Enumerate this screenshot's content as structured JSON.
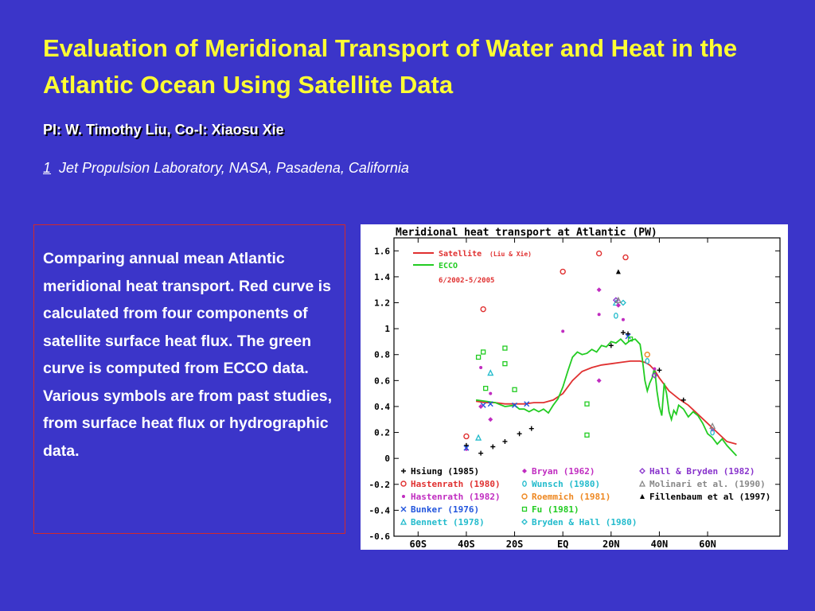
{
  "slide": {
    "title": "Evaluation of Meridional Transport of Water and Heat in the Atlantic Ocean Using Satellite Data",
    "pi": "PI: W. Timothy Liu, Co-I: Xiaosu Xie",
    "affiliation_number": "1",
    "affiliation": "Jet Propulsion Laboratory, NASA, Pasadena, California",
    "description": "Comparing annual mean Atlantic meridional heat transport. Red curve is calculated from four components of satellite surface heat flux. The green curve is computed from ECCO data. Various symbols are from past studies, from surface heat flux or hydrographic data."
  },
  "chart_data": {
    "type": "line",
    "title": "Meridional heat transport at Atlantic (PW)",
    "xlabel": "",
    "ylabel": "",
    "xlim": [
      -70,
      90
    ],
    "ylim": [
      -0.6,
      1.7
    ],
    "x_ticks": [
      -60,
      -40,
      -20,
      0,
      20,
      40,
      60
    ],
    "x_tick_labels": [
      "60S",
      "40S",
      "20S",
      "EQ",
      "20N",
      "40N",
      "60N"
    ],
    "y_ticks": [
      -0.6,
      -0.4,
      -0.2,
      0,
      0.2,
      0.4,
      0.6,
      0.8,
      1,
      1.2,
      1.4,
      1.6
    ],
    "y_tick_labels": [
      "-0.6",
      "-0.4",
      "-0.2",
      "0",
      "0.2",
      "0.4",
      "0.6",
      "0.8",
      "1",
      "1.2",
      "1.4",
      "1.6"
    ],
    "legend_top": {
      "position": "top-left",
      "period": "6/2002-5/2005",
      "items": [
        {
          "label": "Satellite",
          "note": "(Liu & Xie)",
          "color": "#e03030"
        },
        {
          "label": "ECCO",
          "color": "#22cc22"
        }
      ]
    },
    "series": [
      {
        "name": "Satellite",
        "color": "#e03030",
        "x": [
          -36,
          -32,
          -28,
          -24,
          -20,
          -16,
          -12,
          -8,
          -4,
          0,
          4,
          8,
          12,
          16,
          20,
          24,
          28,
          32,
          34,
          36,
          38,
          40,
          44,
          48,
          52,
          56,
          60,
          64,
          68,
          72
        ],
        "y": [
          0.44,
          0.43,
          0.43,
          0.42,
          0.42,
          0.42,
          0.43,
          0.43,
          0.45,
          0.5,
          0.6,
          0.67,
          0.7,
          0.72,
          0.73,
          0.74,
          0.75,
          0.75,
          0.74,
          0.72,
          0.68,
          0.62,
          0.52,
          0.46,
          0.41,
          0.34,
          0.27,
          0.2,
          0.13,
          0.11
        ]
      },
      {
        "name": "ECCO",
        "color": "#22cc22",
        "x": [
          -36,
          -32,
          -28,
          -24,
          -20,
          -18,
          -16,
          -14,
          -12,
          -10,
          -8,
          -6,
          -4,
          -2,
          0,
          2,
          4,
          6,
          8,
          10,
          12,
          14,
          16,
          18,
          20,
          22,
          24,
          26,
          28,
          30,
          32,
          33,
          34,
          35,
          36,
          37,
          38,
          39,
          40,
          41,
          42,
          43,
          44,
          45,
          46,
          47,
          48,
          50,
          52,
          54,
          56,
          58,
          60,
          62,
          64,
          66,
          68,
          72
        ],
        "y": [
          0.45,
          0.44,
          0.43,
          0.4,
          0.41,
          0.38,
          0.38,
          0.36,
          0.38,
          0.36,
          0.38,
          0.35,
          0.41,
          0.46,
          0.55,
          0.67,
          0.78,
          0.82,
          0.8,
          0.81,
          0.84,
          0.82,
          0.87,
          0.86,
          0.9,
          0.89,
          0.92,
          0.88,
          0.91,
          0.92,
          0.88,
          0.76,
          0.6,
          0.52,
          0.58,
          0.62,
          0.7,
          0.52,
          0.4,
          0.33,
          0.58,
          0.5,
          0.36,
          0.3,
          0.37,
          0.34,
          0.41,
          0.38,
          0.32,
          0.36,
          0.33,
          0.27,
          0.19,
          0.16,
          0.11,
          0.15,
          0.1,
          0.02
        ]
      }
    ],
    "studies": [
      {
        "label": "Hsiung (1985)",
        "symbol": "+",
        "color": "#000000",
        "points": [
          [
            -40,
            0.1
          ],
          [
            -34,
            0.04
          ],
          [
            -29,
            0.09
          ],
          [
            -24,
            0.13
          ],
          [
            -18,
            0.19
          ],
          [
            -13,
            0.23
          ],
          [
            20,
            0.87
          ],
          [
            25,
            0.97
          ],
          [
            27,
            0.96
          ],
          [
            40,
            0.68
          ],
          [
            50,
            0.45
          ]
        ]
      },
      {
        "label": "Hastenrath (1980)",
        "symbol": "o",
        "color": "#e03030",
        "points": [
          [
            -40,
            0.17
          ],
          [
            -33,
            1.15
          ],
          [
            0,
            1.44
          ],
          [
            15,
            1.58
          ],
          [
            26,
            1.55
          ]
        ]
      },
      {
        "label": "Hastenrath (1982)",
        "symbol": "•",
        "color": "#c02cc0",
        "points": [
          [
            -40,
            0.07
          ],
          [
            -34,
            0.7
          ],
          [
            -30,
            0.5
          ],
          [
            0,
            0.98
          ],
          [
            15,
            1.11
          ],
          [
            25,
            1.07
          ],
          [
            38,
            0.69
          ],
          [
            62,
            0.22
          ]
        ]
      },
      {
        "label": "Bunker (1976)",
        "symbol": "×",
        "color": "#2255dd",
        "points": [
          [
            -40,
            0.08
          ],
          [
            -33,
            0.41
          ],
          [
            -30,
            0.42
          ],
          [
            -20,
            0.41
          ],
          [
            -15,
            0.42
          ],
          [
            27,
            0.94
          ]
        ]
      },
      {
        "label": "Bennett (1978)",
        "symbol": "△",
        "color": "#22bbcc",
        "points": [
          [
            -35,
            0.16
          ],
          [
            -30,
            0.66
          ],
          [
            22,
            1.2
          ]
        ]
      },
      {
        "label": "Bryan (1962)",
        "symbol": "◆",
        "color": "#c02cc0",
        "points": [
          [
            -34,
            0.4
          ],
          [
            -30,
            0.3
          ],
          [
            15,
            1.3
          ],
          [
            15,
            0.6
          ],
          [
            23,
            1.18
          ]
        ]
      },
      {
        "label": "Wunsch (1980)",
        "symbol": "0",
        "color": "#22bbcc",
        "points": [
          [
            22,
            1.1
          ],
          [
            35,
            0.75
          ],
          [
            62,
            0.2
          ]
        ]
      },
      {
        "label": "Roemmich (1981)",
        "symbol": "o",
        "color": "#ee8822",
        "points": [
          [
            35,
            0.8
          ]
        ]
      },
      {
        "label": "Fu (1981)",
        "symbol": "□",
        "color": "#22cc22",
        "points": [
          [
            -35,
            0.78
          ],
          [
            -33,
            0.82
          ],
          [
            -32,
            0.54
          ],
          [
            -24,
            0.85
          ],
          [
            -24,
            0.73
          ],
          [
            -20,
            0.53
          ],
          [
            10,
            0.42
          ],
          [
            10,
            0.18
          ],
          [
            28,
            0.92
          ]
        ]
      },
      {
        "label": "Bryden & Hall (1980)",
        "symbol": "◇",
        "color": "#22bbcc",
        "points": [
          [
            25,
            1.2
          ]
        ]
      },
      {
        "label": "Hall & Bryden (1982)",
        "symbol": "◇",
        "color": "#8833cc",
        "points": [
          [
            22,
            1.22
          ],
          [
            38,
            0.64
          ]
        ]
      },
      {
        "label": "Molinari et al. (1990)",
        "symbol": "△",
        "color": "#888888",
        "points": [
          [
            23,
            1.22
          ],
          [
            62,
            0.25
          ]
        ]
      },
      {
        "label": "Fillenbaum et al (1997)",
        "symbol": "▲",
        "color": "#000000",
        "points": [
          [
            23,
            1.44
          ]
        ]
      }
    ]
  }
}
